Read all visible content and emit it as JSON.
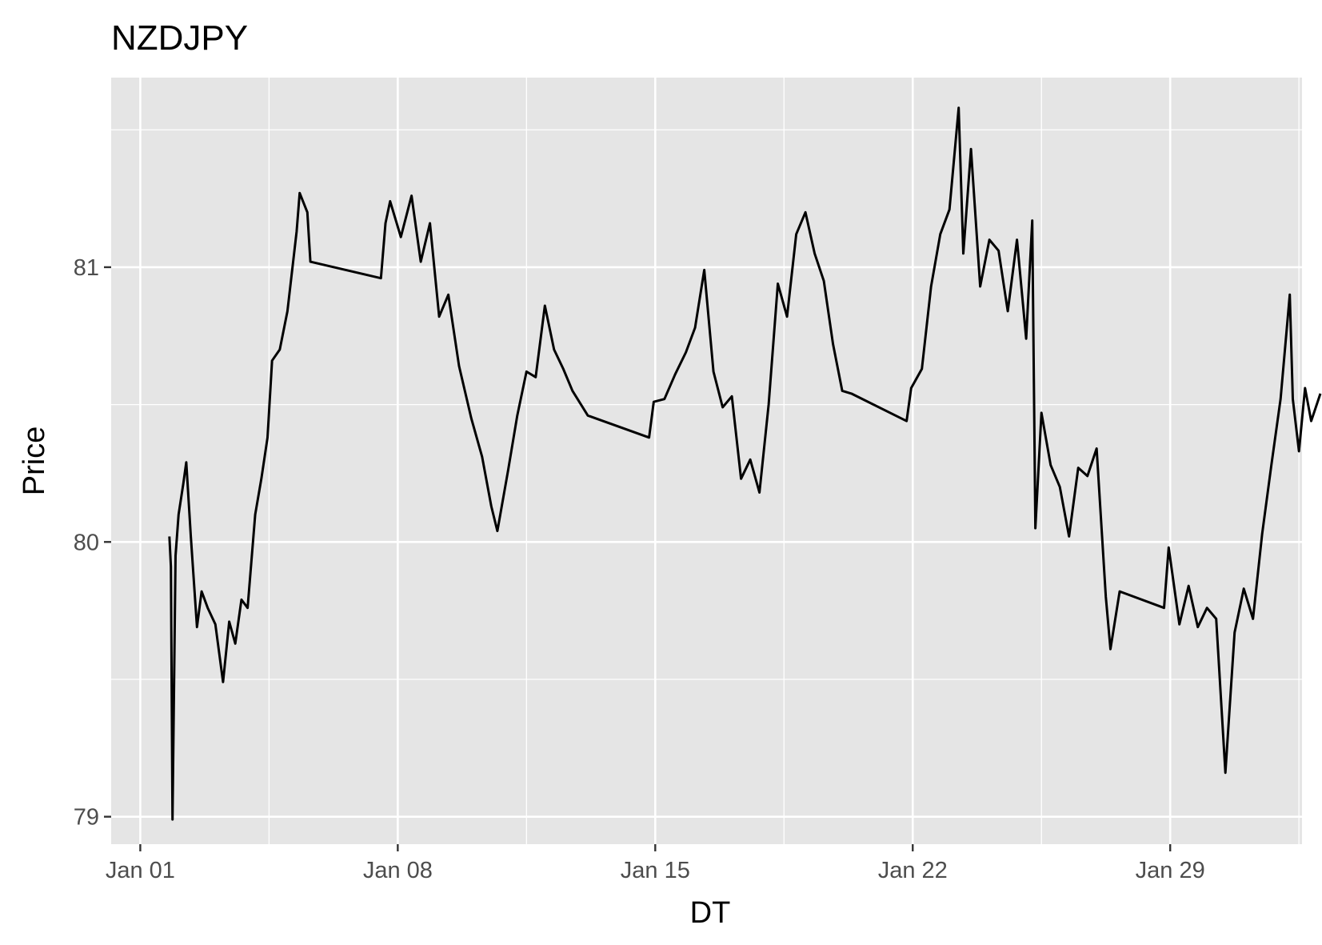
{
  "chart_data": {
    "type": "line",
    "title": "NZDJPY",
    "xlabel": "DT",
    "ylabel": "Price",
    "x_tick_labels": [
      "Jan 01",
      "Jan 08",
      "Jan 15",
      "Jan 22",
      "Jan 29"
    ],
    "x_ticks": [
      "2024-01-01",
      "2024-01-08",
      "2024-01-15",
      "2024-01-22",
      "2024-01-29"
    ],
    "xlim": [
      "2023-12-31 05:00",
      "2024-02-01 14:00"
    ],
    "y_ticks": [
      79,
      80,
      81
    ],
    "ylim": [
      78.9,
      81.69
    ],
    "grid": true,
    "legend": "none",
    "colors": {
      "line": "#000000",
      "panel": "#e5e5e5",
      "grid": "#ffffff"
    },
    "series": [
      {
        "points": [
          [
            "2024-01-01 19:00",
            80.02
          ],
          [
            "2024-01-01 20:00",
            79.91
          ],
          [
            "2024-01-01 21:00",
            78.99
          ],
          [
            "2024-01-01 23:00",
            79.95
          ],
          [
            "2024-01-02 01:00",
            80.1
          ],
          [
            "2024-01-02 04:00",
            80.21
          ],
          [
            "2024-01-02 06:00",
            80.29
          ],
          [
            "2024-01-02 09:00",
            80.02
          ],
          [
            "2024-01-02 13:00",
            79.69
          ],
          [
            "2024-01-02 16:00",
            79.82
          ],
          [
            "2024-01-02 20:00",
            79.76
          ],
          [
            "2024-01-03 01:00",
            79.7
          ],
          [
            "2024-01-03 06:00",
            79.49
          ],
          [
            "2024-01-03 10:00",
            79.71
          ],
          [
            "2024-01-03 14:00",
            79.63
          ],
          [
            "2024-01-03 18:00",
            79.79
          ],
          [
            "2024-01-03 22:00",
            79.76
          ],
          [
            "2024-01-04 03:00",
            80.1
          ],
          [
            "2024-01-04 07:00",
            80.23
          ],
          [
            "2024-01-04 11:00",
            80.38
          ],
          [
            "2024-01-04 14:00",
            80.66
          ],
          [
            "2024-01-04 19:00",
            80.7
          ],
          [
            "2024-01-05 00:00",
            80.84
          ],
          [
            "2024-01-05 06:00",
            81.13
          ],
          [
            "2024-01-05 08:00",
            81.27
          ],
          [
            "2024-01-05 13:00",
            81.2
          ],
          [
            "2024-01-05 15:00",
            81.02
          ],
          [
            "2024-01-07 13:00",
            80.96
          ],
          [
            "2024-01-07 16:00",
            81.16
          ],
          [
            "2024-01-07 19:00",
            81.24
          ],
          [
            "2024-01-08 02:00",
            81.11
          ],
          [
            "2024-01-08 09:00",
            81.26
          ],
          [
            "2024-01-08 15:00",
            81.02
          ],
          [
            "2024-01-08 21:00",
            81.16
          ],
          [
            "2024-01-09 03:00",
            80.82
          ],
          [
            "2024-01-09 09:00",
            80.9
          ],
          [
            "2024-01-09 16:00",
            80.64
          ],
          [
            "2024-01-10 00:00",
            80.45
          ],
          [
            "2024-01-10 07:00",
            80.31
          ],
          [
            "2024-01-10 13:00",
            80.13
          ],
          [
            "2024-01-10 17:00",
            80.04
          ],
          [
            "2024-01-11 00:00",
            80.26
          ],
          [
            "2024-01-11 06:00",
            80.46
          ],
          [
            "2024-01-11 12:00",
            80.62
          ],
          [
            "2024-01-11 18:00",
            80.6
          ],
          [
            "2024-01-12 00:00",
            80.86
          ],
          [
            "2024-01-12 06:00",
            80.7
          ],
          [
            "2024-01-12 12:00",
            80.63
          ],
          [
            "2024-01-12 18:00",
            80.55
          ],
          [
            "2024-01-13 04:00",
            80.46
          ],
          [
            "2024-01-14 20:00",
            80.38
          ],
          [
            "2024-01-14 23:00",
            80.51
          ],
          [
            "2024-01-15 06:00",
            80.52
          ],
          [
            "2024-01-15 13:00",
            80.61
          ],
          [
            "2024-01-15 20:00",
            80.69
          ],
          [
            "2024-01-16 02:00",
            80.78
          ],
          [
            "2024-01-16 08:00",
            80.99
          ],
          [
            "2024-01-16 14:00",
            80.62
          ],
          [
            "2024-01-16 20:00",
            80.49
          ],
          [
            "2024-01-17 02:00",
            80.53
          ],
          [
            "2024-01-17 08:00",
            80.23
          ],
          [
            "2024-01-17 14:00",
            80.3
          ],
          [
            "2024-01-17 20:00",
            80.18
          ],
          [
            "2024-01-18 02:00",
            80.5
          ],
          [
            "2024-01-18 08:00",
            80.94
          ],
          [
            "2024-01-18 14:00",
            80.82
          ],
          [
            "2024-01-18 20:00",
            81.12
          ],
          [
            "2024-01-19 02:00",
            81.2
          ],
          [
            "2024-01-19 08:00",
            81.05
          ],
          [
            "2024-01-19 14:00",
            80.95
          ],
          [
            "2024-01-19 20:00",
            80.72
          ],
          [
            "2024-01-20 02:00",
            80.55
          ],
          [
            "2024-01-20 08:00",
            80.54
          ],
          [
            "2024-01-21 20:00",
            80.44
          ],
          [
            "2024-01-21 23:00",
            80.56
          ],
          [
            "2024-01-22 06:00",
            80.63
          ],
          [
            "2024-01-22 12:00",
            80.93
          ],
          [
            "2024-01-22 18:00",
            81.12
          ],
          [
            "2024-01-23 00:00",
            81.21
          ],
          [
            "2024-01-23 06:00",
            81.58
          ],
          [
            "2024-01-23 09:00",
            81.05
          ],
          [
            "2024-01-23 14:00",
            81.43
          ],
          [
            "2024-01-23 20:00",
            80.93
          ],
          [
            "2024-01-24 02:00",
            81.1
          ],
          [
            "2024-01-24 08:00",
            81.06
          ],
          [
            "2024-01-24 14:00",
            80.84
          ],
          [
            "2024-01-24 20:00",
            81.1
          ],
          [
            "2024-01-25 02:00",
            80.74
          ],
          [
            "2024-01-25 06:00",
            81.17
          ],
          [
            "2024-01-25 08:00",
            80.05
          ],
          [
            "2024-01-25 12:00",
            80.47
          ],
          [
            "2024-01-25 18:00",
            80.28
          ],
          [
            "2024-01-26 00:00",
            80.2
          ],
          [
            "2024-01-26 06:00",
            80.02
          ],
          [
            "2024-01-26 12:00",
            80.27
          ],
          [
            "2024-01-26 18:00",
            80.24
          ],
          [
            "2024-01-27 00:00",
            80.34
          ],
          [
            "2024-01-27 06:00",
            79.8
          ],
          [
            "2024-01-27 09:00",
            79.61
          ],
          [
            "2024-01-27 15:00",
            79.82
          ],
          [
            "2024-01-28 20:00",
            79.76
          ],
          [
            "2024-01-28 23:00",
            79.98
          ],
          [
            "2024-01-29 06:00",
            79.7
          ],
          [
            "2024-01-29 12:00",
            79.84
          ],
          [
            "2024-01-29 18:00",
            79.69
          ],
          [
            "2024-01-30 00:00",
            79.76
          ],
          [
            "2024-01-30 06:00",
            79.72
          ],
          [
            "2024-01-30 12:00",
            79.16
          ],
          [
            "2024-01-30 18:00",
            79.67
          ],
          [
            "2024-01-31 00:00",
            79.83
          ],
          [
            "2024-01-31 06:00",
            79.72
          ],
          [
            "2024-01-31 12:00",
            80.03
          ],
          [
            "2024-01-31 18:00",
            80.28
          ],
          [
            "2024-02-01 00:00",
            80.52
          ],
          [
            "2024-02-01 06:00",
            80.9
          ],
          [
            "2024-02-01 08:00",
            80.52
          ],
          [
            "2024-02-01 12:00",
            80.33
          ],
          [
            "2024-02-01 16:00",
            80.56
          ],
          [
            "2024-02-01 20:00",
            80.44
          ],
          [
            "2024-02-02 02:00",
            80.54
          ]
        ]
      }
    ]
  }
}
